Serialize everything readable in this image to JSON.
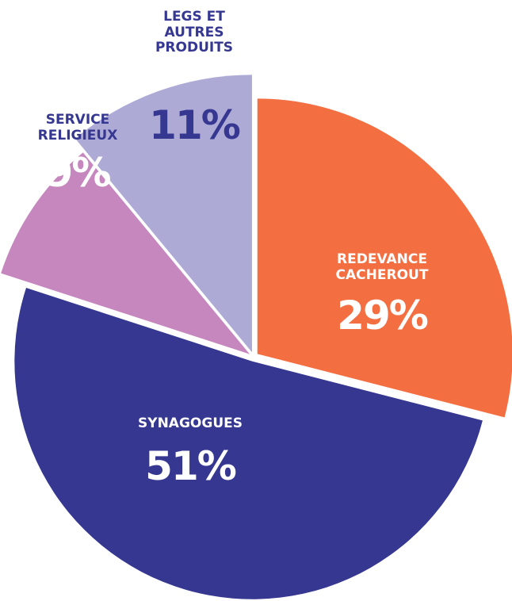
{
  "chart_data": {
    "type": "pie",
    "categories": [
      "REDEVANCE CACHEROUT",
      "SYNAGOGUES",
      "SERVICE RELIGIEUX",
      "LEGS ET AUTRES PRODUITS"
    ],
    "values": [
      29,
      51,
      9,
      11
    ],
    "value_labels": [
      "29%",
      "51%",
      "9%",
      "11%"
    ],
    "colors": [
      "#f36f42",
      "#353791",
      "#c587be",
      "#adaad6"
    ]
  }
}
